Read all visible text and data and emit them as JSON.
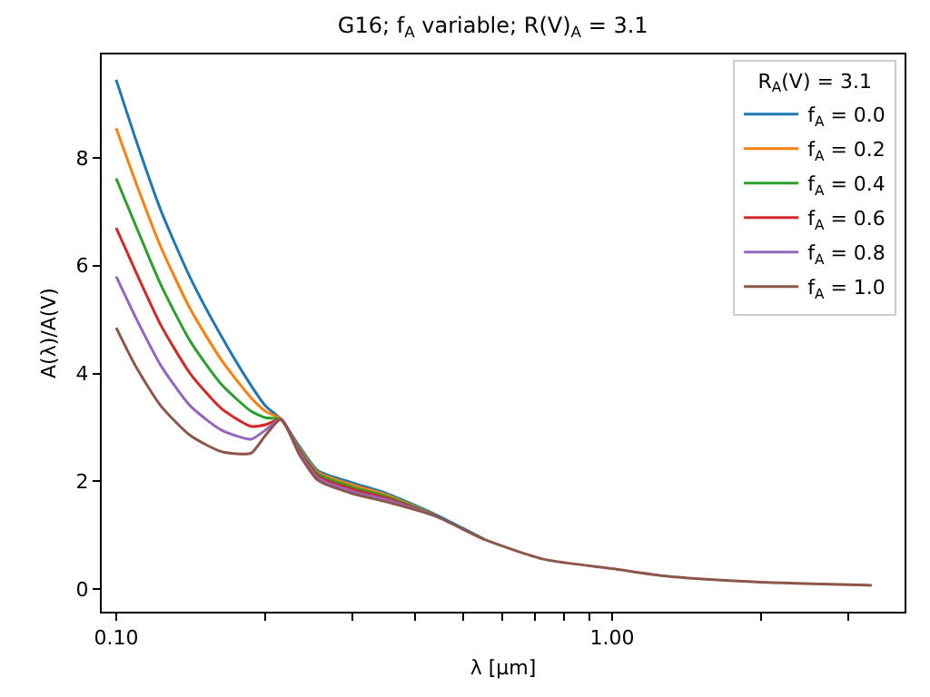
{
  "chart_data": {
    "type": "line",
    "title": "G16; f$_{A}$ variable; R(V)$_{A}$ = 3.1",
    "xlabel": "λ [μm]",
    "ylabel": "A(λ)/A(V)",
    "legend_title": "R$_{A}$(V) = 3.1",
    "log": "x",
    "grid": false,
    "legend": "top right",
    "marker": "none",
    "line_style": "solid",
    "xlim": [
      0.0935,
      3.89
    ],
    "ylim": [
      -0.42,
      9.92
    ],
    "xticks": [
      {
        "value": 0.1,
        "label": "0.10"
      },
      {
        "value": 0.2,
        "label": null
      },
      {
        "value": 0.3,
        "label": null
      },
      {
        "value": 0.4,
        "label": null
      },
      {
        "value": 0.5,
        "label": null
      },
      {
        "value": 0.6,
        "label": null
      },
      {
        "value": 0.7,
        "label": null
      },
      {
        "value": 0.8,
        "label": null
      },
      {
        "value": 0.9,
        "label": null
      },
      {
        "value": 1,
        "label": "1.00"
      },
      {
        "value": 2,
        "label": null
      },
      {
        "value": 3,
        "label": null
      }
    ],
    "yticks": [
      0,
      2,
      4,
      6,
      8
    ],
    "x": [
      0.1,
      0.11,
      0.123,
      0.141,
      0.163,
      0.187,
      0.2,
      0.215,
      0.234,
      0.255,
      0.3,
      0.35,
      0.441,
      0.553,
      0.731,
      1.0,
      1.285,
      1.96,
      3.34
    ],
    "series": [
      {
        "name": "f$_{A}$ = 0.0",
        "color": "#1f77b4",
        "values": [
          9.45,
          8.29,
          7.03,
          5.78,
          4.69,
          3.78,
          3.4,
          3.15,
          2.65,
          2.2,
          1.97,
          1.78,
          1.38,
          0.92,
          null,
          null,
          null,
          null,
          null
        ]
      },
      {
        "name": "f$_{A}$ = 0.2",
        "color": "#ff7f0e",
        "values": [
          8.55,
          7.5,
          6.35,
          5.2,
          4.25,
          3.55,
          3.3,
          3.15,
          2.62,
          2.17,
          1.93,
          1.75,
          1.37,
          null,
          null,
          null,
          null,
          null,
          null
        ]
      },
      {
        "name": "f$_{A}$ = 0.4",
        "color": "#2ca02c",
        "values": [
          7.62,
          6.7,
          5.65,
          4.6,
          3.8,
          3.3,
          3.18,
          3.15,
          2.6,
          2.14,
          1.89,
          1.72,
          1.37,
          null,
          null,
          null,
          null,
          null,
          null
        ]
      },
      {
        "name": "f$_{A}$ = 0.6",
        "color": "#d62728",
        "values": [
          6.7,
          5.85,
          4.9,
          4.0,
          3.35,
          3.02,
          3.05,
          3.15,
          2.57,
          2.1,
          1.85,
          1.69,
          1.36,
          null,
          null,
          null,
          null,
          null,
          null
        ]
      },
      {
        "name": "f$_{A}$ = 0.8",
        "color": "#9467bd",
        "values": [
          5.8,
          5.0,
          4.15,
          3.4,
          2.95,
          2.78,
          2.95,
          3.15,
          2.54,
          2.06,
          1.81,
          1.66,
          1.36,
          null,
          null,
          null,
          null,
          null,
          null
        ]
      },
      {
        "name": "f$_{A}$ = 1.0",
        "color": "#8c564b",
        "values": [
          4.85,
          4.1,
          3.4,
          2.85,
          2.55,
          2.52,
          2.85,
          3.15,
          2.5,
          2.02,
          1.77,
          1.62,
          1.35,
          0.92,
          0.55,
          0.38,
          0.24,
          0.13,
          0.07
        ]
      }
    ]
  }
}
